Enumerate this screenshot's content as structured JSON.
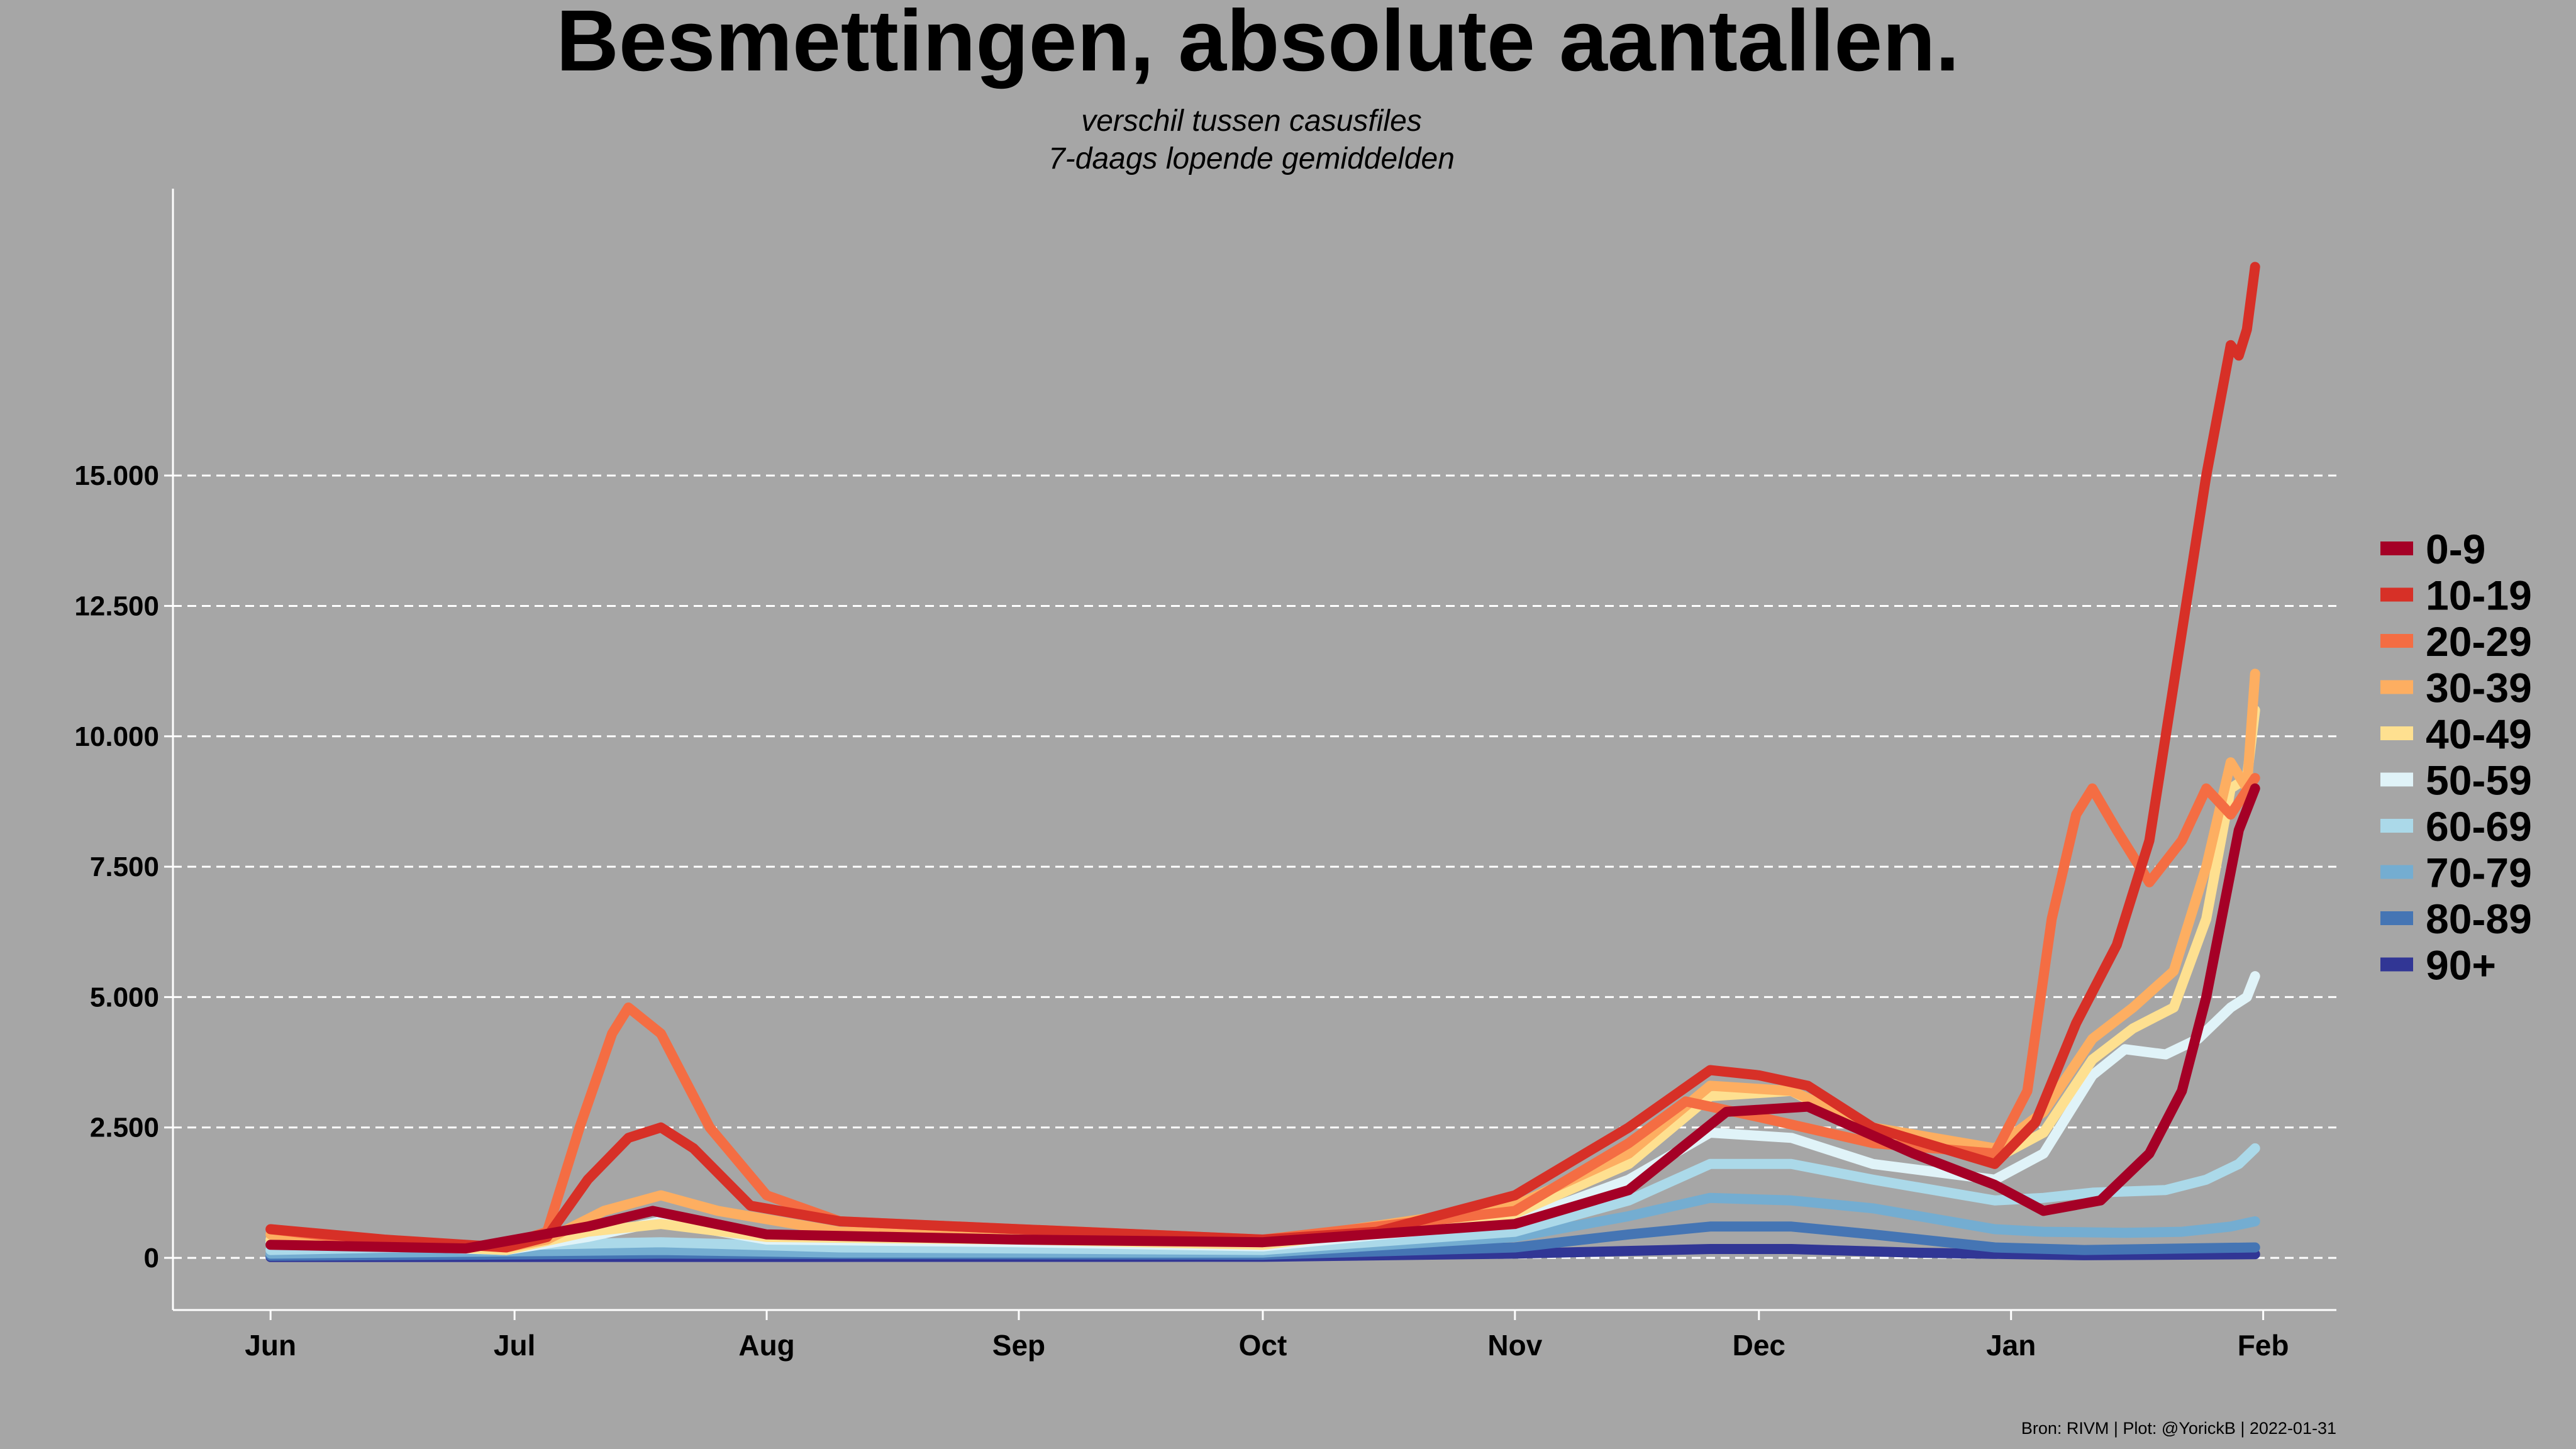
{
  "chart_data": {
    "type": "line",
    "title": "Besmettingen, absolute aantallen.",
    "subtitle_line1": "verschil tussen casusfiles",
    "subtitle_line2": "7-daags lopende gemiddelden",
    "caption": "Bron: RIVM | Plot: @YorickB  |  2022-01-31",
    "xlabel": "",
    "ylabel": "",
    "x_ticks": [
      "Jun",
      "Jul",
      "Aug",
      "Sep",
      "Oct",
      "Nov",
      "Dec",
      "Jan",
      "Feb"
    ],
    "y_ticks": [
      "0",
      "2.500",
      "5.000",
      "7.500",
      "10.000",
      "12.500",
      "15.000"
    ],
    "y_tick_values": [
      0,
      2500,
      5000,
      7500,
      10000,
      12500,
      15000
    ],
    "xlim": [
      "2021-05-20",
      "2022-02-10"
    ],
    "ylim": [
      -1000,
      20500
    ],
    "grid": "horizontal dashed",
    "legend_position": "right",
    "series": [
      {
        "name": "0-9",
        "color": "#a50026",
        "points": [
          [
            "2021-06-01",
            250
          ],
          [
            "2021-06-25",
            180
          ],
          [
            "2021-07-10",
            600
          ],
          [
            "2021-07-18",
            900
          ],
          [
            "2021-08-01",
            450
          ],
          [
            "2021-09-01",
            350
          ],
          [
            "2021-10-01",
            300
          ],
          [
            "2021-11-01",
            650
          ],
          [
            "2021-11-15",
            1300
          ],
          [
            "2021-11-27",
            2800
          ],
          [
            "2021-12-07",
            2900
          ],
          [
            "2021-12-20",
            2000
          ],
          [
            "2021-12-30",
            1400
          ],
          [
            "2022-01-05",
            900
          ],
          [
            "2022-01-12",
            1100
          ],
          [
            "2022-01-18",
            2000
          ],
          [
            "2022-01-22",
            3200
          ],
          [
            "2022-01-25",
            5000
          ],
          [
            "2022-01-29",
            8200
          ],
          [
            "2022-01-31",
            9000
          ]
        ]
      },
      {
        "name": "10-19",
        "color": "#d73027",
        "points": [
          [
            "2021-06-01",
            550
          ],
          [
            "2021-06-15",
            350
          ],
          [
            "2021-06-30",
            200
          ],
          [
            "2021-07-05",
            400
          ],
          [
            "2021-07-10",
            1500
          ],
          [
            "2021-07-15",
            2300
          ],
          [
            "2021-07-19",
            2500
          ],
          [
            "2021-07-23",
            2100
          ],
          [
            "2021-07-30",
            1000
          ],
          [
            "2021-08-10",
            700
          ],
          [
            "2021-09-01",
            550
          ],
          [
            "2021-10-01",
            350
          ],
          [
            "2021-10-15",
            500
          ],
          [
            "2021-11-01",
            1200
          ],
          [
            "2021-11-15",
            2500
          ],
          [
            "2021-11-25",
            3600
          ],
          [
            "2021-12-01",
            3500
          ],
          [
            "2021-12-07",
            3300
          ],
          [
            "2021-12-15",
            2500
          ],
          [
            "2021-12-30",
            1800
          ],
          [
            "2022-01-04",
            2600
          ],
          [
            "2022-01-09",
            4500
          ],
          [
            "2022-01-14",
            6000
          ],
          [
            "2022-01-18",
            8000
          ],
          [
            "2022-01-22",
            12000
          ],
          [
            "2022-01-25",
            15000
          ],
          [
            "2022-01-28",
            17500
          ],
          [
            "2022-01-29",
            17300
          ],
          [
            "2022-01-30",
            17800
          ],
          [
            "2022-01-31",
            19000
          ]
        ]
      },
      {
        "name": "20-29",
        "color": "#f46d43",
        "points": [
          [
            "2021-06-01",
            550
          ],
          [
            "2021-06-20",
            200
          ],
          [
            "2021-06-30",
            250
          ],
          [
            "2021-07-05",
            500
          ],
          [
            "2021-07-09",
            2500
          ],
          [
            "2021-07-13",
            4300
          ],
          [
            "2021-07-15",
            4800
          ],
          [
            "2021-07-19",
            4300
          ],
          [
            "2021-07-25",
            2500
          ],
          [
            "2021-08-01",
            1200
          ],
          [
            "2021-08-10",
            700
          ],
          [
            "2021-09-01",
            550
          ],
          [
            "2021-10-01",
            350
          ],
          [
            "2021-11-01",
            900
          ],
          [
            "2021-11-15",
            2200
          ],
          [
            "2021-11-22",
            3000
          ],
          [
            "2021-12-01",
            2700
          ],
          [
            "2021-12-15",
            2200
          ],
          [
            "2021-12-30",
            2000
          ],
          [
            "2022-01-03",
            3200
          ],
          [
            "2022-01-06",
            6500
          ],
          [
            "2022-01-09",
            8500
          ],
          [
            "2022-01-11",
            9000
          ],
          [
            "2022-01-14",
            8200
          ],
          [
            "2022-01-18",
            7200
          ],
          [
            "2022-01-22",
            8000
          ],
          [
            "2022-01-25",
            9000
          ],
          [
            "2022-01-28",
            8500
          ],
          [
            "2022-01-31",
            9200
          ]
        ]
      },
      {
        "name": "30-39",
        "color": "#fdae61",
        "points": [
          [
            "2021-06-01",
            450
          ],
          [
            "2021-06-30",
            200
          ],
          [
            "2021-07-05",
            350
          ],
          [
            "2021-07-12",
            900
          ],
          [
            "2021-07-19",
            1200
          ],
          [
            "2021-07-26",
            900
          ],
          [
            "2021-08-10",
            500
          ],
          [
            "2021-09-01",
            450
          ],
          [
            "2021-10-01",
            300
          ],
          [
            "2021-11-01",
            1000
          ],
          [
            "2021-11-15",
            2000
          ],
          [
            "2021-11-25",
            3300
          ],
          [
            "2021-12-05",
            3200
          ],
          [
            "2021-12-15",
            2500
          ],
          [
            "2021-12-30",
            2100
          ],
          [
            "2022-01-05",
            2800
          ],
          [
            "2022-01-11",
            4200
          ],
          [
            "2022-01-16",
            4800
          ],
          [
            "2022-01-21",
            5500
          ],
          [
            "2022-01-25",
            7500
          ],
          [
            "2022-01-28",
            9500
          ],
          [
            "2022-01-30",
            9000
          ],
          [
            "2022-01-31",
            11200
          ]
        ]
      },
      {
        "name": "40-49",
        "color": "#fee090",
        "points": [
          [
            "2021-06-01",
            350
          ],
          [
            "2021-06-30",
            150
          ],
          [
            "2021-07-10",
            500
          ],
          [
            "2021-07-19",
            650
          ],
          [
            "2021-08-01",
            400
          ],
          [
            "2021-09-01",
            350
          ],
          [
            "2021-10-01",
            250
          ],
          [
            "2021-11-01",
            850
          ],
          [
            "2021-11-15",
            1800
          ],
          [
            "2021-11-25",
            3100
          ],
          [
            "2021-12-05",
            3200
          ],
          [
            "2021-12-15",
            2400
          ],
          [
            "2021-12-30",
            1900
          ],
          [
            "2022-01-05",
            2400
          ],
          [
            "2022-01-11",
            3800
          ],
          [
            "2022-01-16",
            4400
          ],
          [
            "2022-01-21",
            4800
          ],
          [
            "2022-01-25",
            6500
          ],
          [
            "2022-01-28",
            9000
          ],
          [
            "2022-01-30",
            9200
          ],
          [
            "2022-01-31",
            10500
          ]
        ]
      },
      {
        "name": "50-59",
        "color": "#e0f3f8",
        "points": [
          [
            "2021-06-01",
            300
          ],
          [
            "2021-06-30",
            150
          ],
          [
            "2021-07-10",
            400
          ],
          [
            "2021-07-19",
            700
          ],
          [
            "2021-08-01",
            350
          ],
          [
            "2021-09-01",
            300
          ],
          [
            "2021-10-01",
            220
          ],
          [
            "2021-11-01",
            700
          ],
          [
            "2021-11-15",
            1500
          ],
          [
            "2021-11-25",
            2400
          ],
          [
            "2021-12-05",
            2300
          ],
          [
            "2021-12-15",
            1800
          ],
          [
            "2021-12-30",
            1500
          ],
          [
            "2022-01-05",
            2000
          ],
          [
            "2022-01-11",
            3500
          ],
          [
            "2022-01-15",
            4000
          ],
          [
            "2022-01-20",
            3900
          ],
          [
            "2022-01-24",
            4200
          ],
          [
            "2022-01-28",
            4800
          ],
          [
            "2022-01-30",
            5000
          ],
          [
            "2022-01-31",
            5400
          ]
        ]
      },
      {
        "name": "60-69",
        "color": "#abd9e9",
        "points": [
          [
            "2021-06-01",
            150
          ],
          [
            "2021-07-19",
            300
          ],
          [
            "2021-08-10",
            200
          ],
          [
            "2021-10-01",
            150
          ],
          [
            "2021-11-01",
            500
          ],
          [
            "2021-11-15",
            1100
          ],
          [
            "2021-11-25",
            1800
          ],
          [
            "2021-12-05",
            1800
          ],
          [
            "2021-12-15",
            1500
          ],
          [
            "2021-12-30",
            1100
          ],
          [
            "2022-01-05",
            1150
          ],
          [
            "2022-01-11",
            1250
          ],
          [
            "2022-01-20",
            1300
          ],
          [
            "2022-01-25",
            1500
          ],
          [
            "2022-01-29",
            1800
          ],
          [
            "2022-01-31",
            2100
          ]
        ]
      },
      {
        "name": "70-79",
        "color": "#74add1",
        "points": [
          [
            "2021-06-01",
            80
          ],
          [
            "2021-07-19",
            150
          ],
          [
            "2021-08-10",
            100
          ],
          [
            "2021-10-01",
            100
          ],
          [
            "2021-11-01",
            400
          ],
          [
            "2021-11-15",
            800
          ],
          [
            "2021-11-25",
            1150
          ],
          [
            "2021-12-05",
            1100
          ],
          [
            "2021-12-15",
            950
          ],
          [
            "2021-12-30",
            550
          ],
          [
            "2022-01-05",
            500
          ],
          [
            "2022-01-15",
            480
          ],
          [
            "2022-01-22",
            500
          ],
          [
            "2022-01-28",
            600
          ],
          [
            "2022-01-31",
            700
          ]
        ]
      },
      {
        "name": "80-89",
        "color": "#4575b4",
        "points": [
          [
            "2021-06-01",
            40
          ],
          [
            "2021-07-19",
            80
          ],
          [
            "2021-10-01",
            60
          ],
          [
            "2021-11-01",
            200
          ],
          [
            "2021-11-15",
            450
          ],
          [
            "2021-11-25",
            600
          ],
          [
            "2021-12-05",
            600
          ],
          [
            "2021-12-15",
            450
          ],
          [
            "2021-12-30",
            200
          ],
          [
            "2022-01-10",
            150
          ],
          [
            "2022-01-31",
            200
          ]
        ]
      },
      {
        "name": "90+",
        "color": "#313695",
        "points": [
          [
            "2021-06-01",
            15
          ],
          [
            "2021-10-01",
            20
          ],
          [
            "2021-11-01",
            80
          ],
          [
            "2021-11-25",
            170
          ],
          [
            "2021-12-05",
            170
          ],
          [
            "2021-12-20",
            100
          ],
          [
            "2022-01-10",
            50
          ],
          [
            "2022-01-31",
            70
          ]
        ]
      }
    ]
  }
}
